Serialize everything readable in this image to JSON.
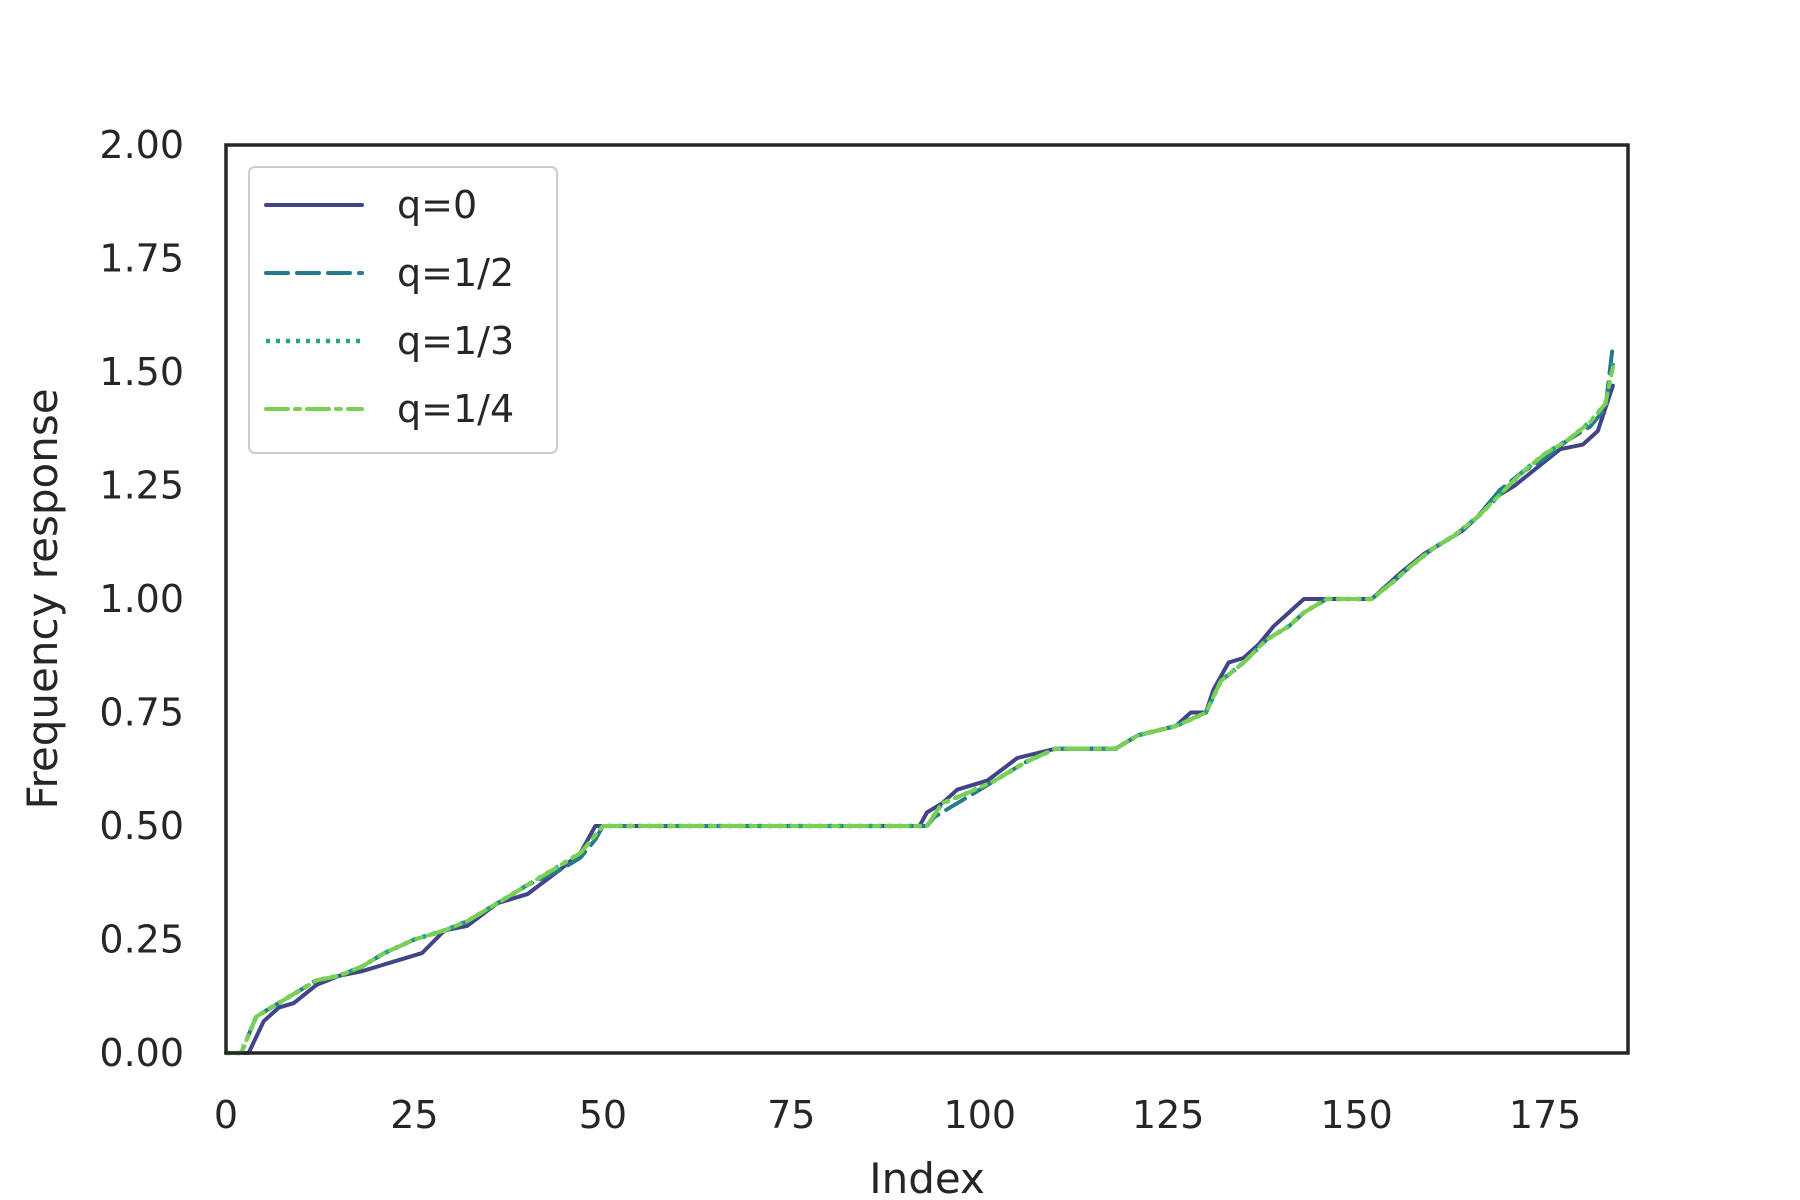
{
  "chart_data": {
    "type": "line",
    "title": "",
    "xlabel": "Index",
    "ylabel": "Frequency response",
    "xlim": [
      0,
      186
    ],
    "ylim": [
      0,
      2
    ],
    "xticks": [
      "0",
      "25",
      "50",
      "75",
      "100",
      "125",
      "150",
      "175"
    ],
    "yticks": [
      "0.00",
      "0.25",
      "0.50",
      "0.75",
      "1.00",
      "1.25",
      "1.50",
      "1.75",
      "2.00"
    ],
    "grid": false,
    "legend": "upper-left",
    "series": [
      {
        "name": "q=0",
        "color": "#414487",
        "style": "solid",
        "points": [
          [
            0,
            0
          ],
          [
            3,
            0
          ],
          [
            5,
            0.07
          ],
          [
            7,
            0.1
          ],
          [
            9,
            0.11
          ],
          [
            12,
            0.15
          ],
          [
            15,
            0.17
          ],
          [
            18,
            0.18
          ],
          [
            22,
            0.2
          ],
          [
            26,
            0.22
          ],
          [
            29,
            0.27
          ],
          [
            32,
            0.28
          ],
          [
            36,
            0.33
          ],
          [
            40,
            0.35
          ],
          [
            44,
            0.4
          ],
          [
            47,
            0.44
          ],
          [
            49,
            0.5
          ],
          [
            92,
            0.5
          ],
          [
            93,
            0.53
          ],
          [
            95,
            0.55
          ],
          [
            97,
            0.58
          ],
          [
            101,
            0.6
          ],
          [
            105,
            0.65
          ],
          [
            110,
            0.67
          ],
          [
            118,
            0.67
          ],
          [
            121,
            0.7
          ],
          [
            126,
            0.72
          ],
          [
            128,
            0.75
          ],
          [
            130,
            0.75
          ],
          [
            131,
            0.8
          ],
          [
            133,
            0.86
          ],
          [
            135,
            0.87
          ],
          [
            137,
            0.9
          ],
          [
            139,
            0.94
          ],
          [
            141,
            0.97
          ],
          [
            143,
            1.0
          ],
          [
            152,
            1.0
          ],
          [
            154,
            1.03
          ],
          [
            156,
            1.06
          ],
          [
            159,
            1.1
          ],
          [
            162,
            1.13
          ],
          [
            164,
            1.15
          ],
          [
            166,
            1.18
          ],
          [
            168,
            1.22
          ],
          [
            171,
            1.25
          ],
          [
            174,
            1.29
          ],
          [
            177,
            1.33
          ],
          [
            180,
            1.34
          ],
          [
            182,
            1.37
          ],
          [
            184,
            1.47
          ]
        ]
      },
      {
        "name": "q=1/2",
        "color": "#2a788e",
        "style": "dashed",
        "points": [
          [
            0,
            0
          ],
          [
            2,
            0
          ],
          [
            4,
            0.08
          ],
          [
            6,
            0.1
          ],
          [
            8,
            0.12
          ],
          [
            12,
            0.16
          ],
          [
            15,
            0.17
          ],
          [
            18,
            0.19
          ],
          [
            21,
            0.22
          ],
          [
            25,
            0.25
          ],
          [
            29,
            0.27
          ],
          [
            32,
            0.29
          ],
          [
            36,
            0.33
          ],
          [
            40,
            0.37
          ],
          [
            44,
            0.4
          ],
          [
            47,
            0.43
          ],
          [
            49,
            0.47
          ],
          [
            50,
            0.5
          ],
          [
            93,
            0.5
          ],
          [
            94,
            0.52
          ],
          [
            96,
            0.54
          ],
          [
            98,
            0.56
          ],
          [
            102,
            0.6
          ],
          [
            106,
            0.64
          ],
          [
            110,
            0.67
          ],
          [
            118,
            0.67
          ],
          [
            121,
            0.7
          ],
          [
            126,
            0.72
          ],
          [
            130,
            0.75
          ],
          [
            132,
            0.82
          ],
          [
            135,
            0.86
          ],
          [
            138,
            0.91
          ],
          [
            141,
            0.94
          ],
          [
            143,
            0.97
          ],
          [
            146,
            1.0
          ],
          [
            152,
            1.0
          ],
          [
            155,
            1.04
          ],
          [
            157,
            1.07
          ],
          [
            160,
            1.11
          ],
          [
            163,
            1.14
          ],
          [
            166,
            1.18
          ],
          [
            169,
            1.24
          ],
          [
            172,
            1.28
          ],
          [
            175,
            1.31
          ],
          [
            178,
            1.35
          ],
          [
            181,
            1.38
          ],
          [
            183,
            1.42
          ],
          [
            184,
            1.56
          ]
        ]
      },
      {
        "name": "q=1/3",
        "color": "#22a884",
        "style": "dotted",
        "points": [
          [
            0,
            0
          ],
          [
            2,
            0
          ],
          [
            4,
            0.08
          ],
          [
            6,
            0.1
          ],
          [
            8,
            0.12
          ],
          [
            12,
            0.16
          ],
          [
            15,
            0.17
          ],
          [
            18,
            0.19
          ],
          [
            21,
            0.22
          ],
          [
            25,
            0.25
          ],
          [
            29,
            0.27
          ],
          [
            32,
            0.29
          ],
          [
            36,
            0.33
          ],
          [
            40,
            0.37
          ],
          [
            44,
            0.41
          ],
          [
            47,
            0.44
          ],
          [
            49,
            0.48
          ],
          [
            50,
            0.5
          ],
          [
            93,
            0.5
          ],
          [
            95,
            0.55
          ],
          [
            98,
            0.57
          ],
          [
            102,
            0.6
          ],
          [
            106,
            0.64
          ],
          [
            110,
            0.67
          ],
          [
            118,
            0.67
          ],
          [
            121,
            0.7
          ],
          [
            126,
            0.72
          ],
          [
            130,
            0.75
          ],
          [
            132,
            0.82
          ],
          [
            135,
            0.86
          ],
          [
            138,
            0.91
          ],
          [
            141,
            0.94
          ],
          [
            143,
            0.97
          ],
          [
            146,
            1.0
          ],
          [
            152,
            1.0
          ],
          [
            155,
            1.04
          ],
          [
            157,
            1.07
          ],
          [
            160,
            1.11
          ],
          [
            163,
            1.14
          ],
          [
            166,
            1.18
          ],
          [
            169,
            1.23
          ],
          [
            172,
            1.28
          ],
          [
            175,
            1.32
          ],
          [
            178,
            1.35
          ],
          [
            181,
            1.39
          ],
          [
            183,
            1.43
          ],
          [
            184,
            1.52
          ]
        ]
      },
      {
        "name": "q=1/4",
        "color": "#7ad151",
        "style": "dashdot",
        "points": [
          [
            0,
            0
          ],
          [
            2,
            0
          ],
          [
            4,
            0.08
          ],
          [
            6,
            0.1
          ],
          [
            8,
            0.12
          ],
          [
            12,
            0.16
          ],
          [
            15,
            0.17
          ],
          [
            18,
            0.19
          ],
          [
            21,
            0.22
          ],
          [
            25,
            0.25
          ],
          [
            29,
            0.27
          ],
          [
            32,
            0.29
          ],
          [
            36,
            0.33
          ],
          [
            40,
            0.37
          ],
          [
            44,
            0.41
          ],
          [
            47,
            0.44
          ],
          [
            49,
            0.48
          ],
          [
            50,
            0.5
          ],
          [
            93,
            0.5
          ],
          [
            95,
            0.55
          ],
          [
            98,
            0.57
          ],
          [
            102,
            0.6
          ],
          [
            106,
            0.64
          ],
          [
            110,
            0.67
          ],
          [
            118,
            0.67
          ],
          [
            121,
            0.7
          ],
          [
            126,
            0.72
          ],
          [
            130,
            0.75
          ],
          [
            132,
            0.82
          ],
          [
            135,
            0.86
          ],
          [
            138,
            0.91
          ],
          [
            141,
            0.94
          ],
          [
            143,
            0.97
          ],
          [
            146,
            1.0
          ],
          [
            152,
            1.0
          ],
          [
            155,
            1.04
          ],
          [
            157,
            1.07
          ],
          [
            160,
            1.11
          ],
          [
            163,
            1.14
          ],
          [
            166,
            1.18
          ],
          [
            169,
            1.23
          ],
          [
            172,
            1.28
          ],
          [
            175,
            1.32
          ],
          [
            178,
            1.35
          ],
          [
            181,
            1.39
          ],
          [
            183,
            1.43
          ],
          [
            184,
            1.51
          ]
        ]
      }
    ]
  }
}
